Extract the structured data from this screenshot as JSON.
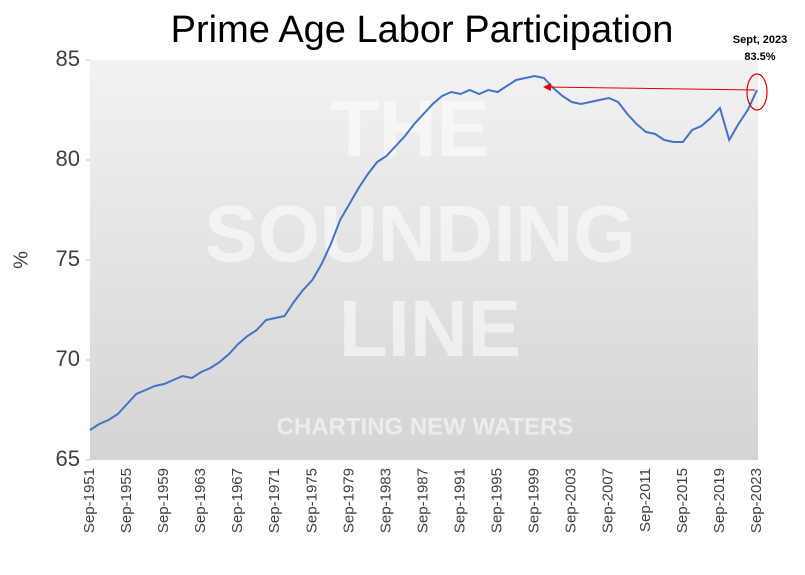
{
  "chart_data": {
    "type": "line",
    "title": "Prime Age Labor Participation",
    "y_label": "%",
    "categories": [
      "Sep-1951",
      null,
      null,
      null,
      "Sep-1955",
      null,
      null,
      null,
      "Sep-1959",
      null,
      null,
      null,
      "Sep-1963",
      null,
      null,
      null,
      "Sep-1967",
      null,
      null,
      null,
      "Sep-1971",
      null,
      null,
      null,
      "Sep-1975",
      null,
      null,
      null,
      "Sep-1979",
      null,
      null,
      null,
      "Sep-1983",
      null,
      null,
      null,
      "Sep-1987",
      null,
      null,
      null,
      "Sep-1991",
      null,
      null,
      null,
      "Sep-1995",
      null,
      null,
      null,
      "Sep-1999",
      null,
      null,
      null,
      "Sep-2003",
      null,
      null,
      null,
      "Sep-2007",
      null,
      null,
      null,
      "Sep-2011",
      null,
      null,
      null,
      "Sep-2015",
      null,
      null,
      null,
      "Sep-2019",
      null,
      null,
      null,
      "Sep-2023"
    ],
    "series": [
      {
        "name": "Prime Age Labor Participation",
        "color": "#4472c4",
        "values": [
          66.5,
          66.8,
          67.0,
          67.3,
          67.8,
          68.3,
          68.5,
          68.7,
          68.8,
          69.0,
          69.2,
          69.1,
          69.4,
          69.6,
          69.9,
          70.3,
          70.8,
          71.2,
          71.5,
          72.0,
          72.1,
          72.2,
          72.9,
          73.5,
          74.0,
          74.8,
          75.8,
          77.0,
          77.8,
          78.6,
          79.3,
          79.9,
          80.2,
          80.7,
          81.2,
          81.8,
          82.3,
          82.8,
          83.2,
          83.4,
          83.3,
          83.5,
          83.3,
          83.5,
          83.4,
          83.7,
          84.0,
          84.1,
          84.2,
          84.1,
          83.6,
          83.2,
          82.9,
          82.8,
          82.9,
          83.0,
          83.1,
          82.9,
          82.3,
          81.8,
          81.4,
          81.3,
          81.0,
          80.9,
          80.9,
          81.5,
          81.7,
          82.1,
          82.6,
          81.0,
          81.8,
          82.5,
          83.5
        ]
      }
    ],
    "ylim": [
      65,
      85
    ],
    "yticks": [
      65,
      70,
      75,
      80,
      85
    ],
    "annotations": [
      "Sept, 2023",
      "83.5%"
    ],
    "annotation_color": "#e00000",
    "watermark": [
      "THE",
      "SOUNDING",
      "LINE",
      "CHARTING NEW WATERS"
    ]
  }
}
